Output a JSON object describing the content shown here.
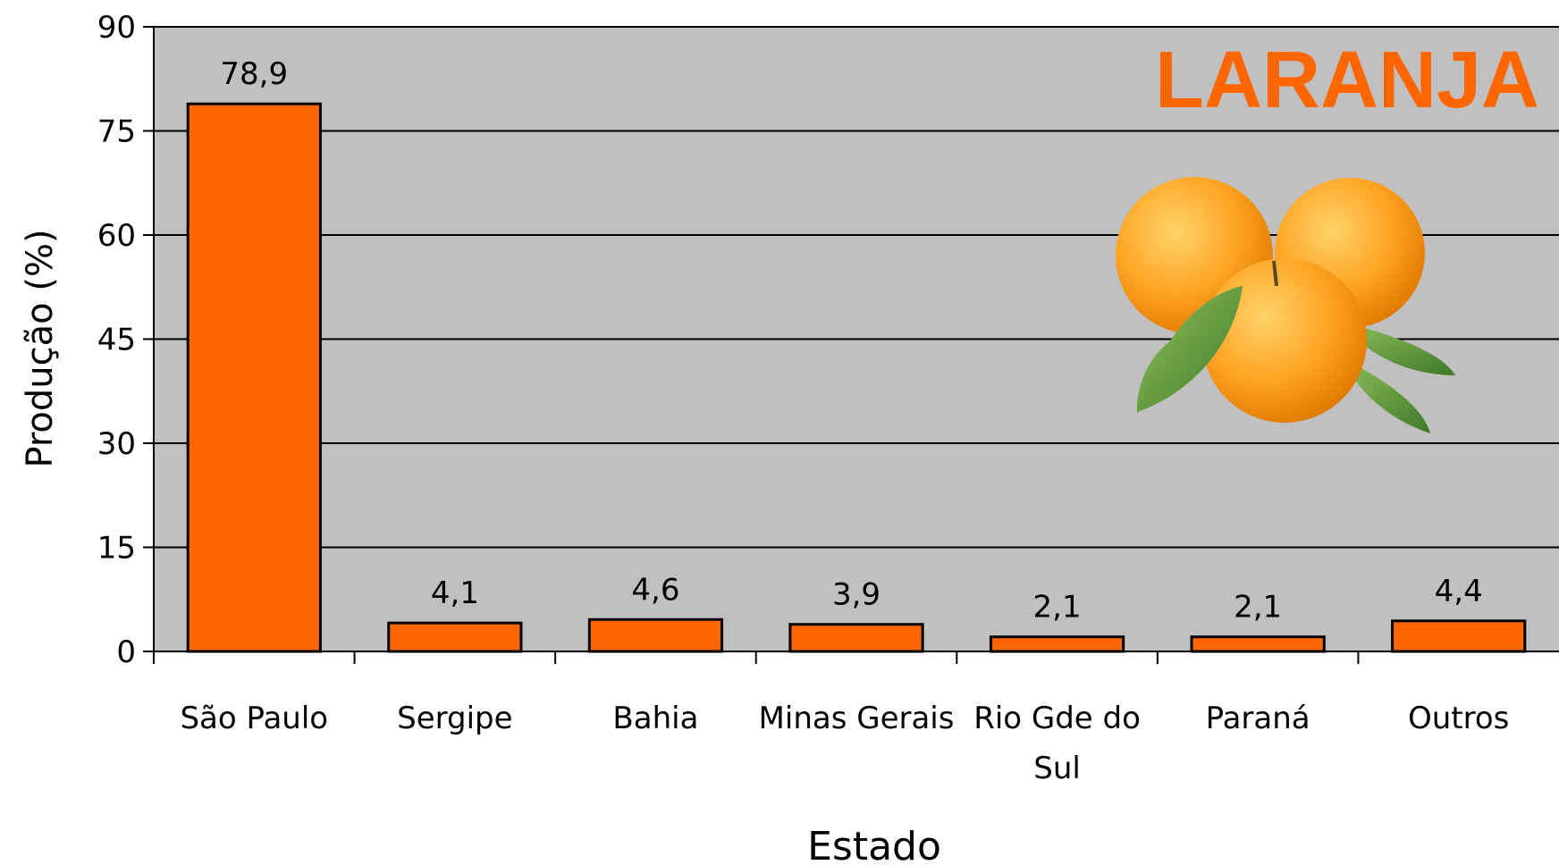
{
  "chart_data": {
    "type": "bar",
    "title": "LARANJA",
    "x_label": "Estado",
    "y_label": "Produção (%)",
    "categories": [
      "São Paulo",
      "Sergipe",
      "Bahia",
      "Minas Gerais",
      "Rio Gde do Sul",
      "Paraná",
      "Outros"
    ],
    "values": [
      78.9,
      4.1,
      4.6,
      3.9,
      2.1,
      2.1,
      4.4
    ],
    "value_labels": [
      "78,9",
      "4,1",
      "4,6",
      "3,9",
      "2,1",
      "2,1",
      "4,4"
    ],
    "color": "#ff6600",
    "ylim": [
      0,
      90
    ],
    "yticks": [
      0,
      15,
      30,
      45,
      60,
      75,
      90
    ],
    "grid": true
  }
}
